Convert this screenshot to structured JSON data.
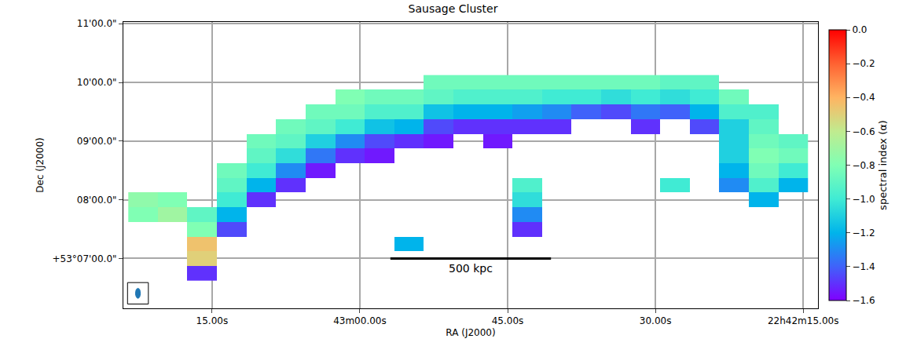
{
  "chart_data": {
    "type": "heatmap",
    "title": "Sausage Cluster",
    "x_label": "RA (J2000)",
    "y_label": "Dec (J2000)",
    "x": [
      82,
      79,
      76,
      73,
      70,
      67,
      64,
      61,
      58,
      55,
      52,
      49,
      46,
      43,
      40,
      37,
      34,
      31,
      28,
      25,
      22,
      19,
      16
    ],
    "y": [
      6.75,
      7.0,
      7.25,
      7.5,
      7.75,
      8.0,
      8.25,
      8.5,
      8.75,
      9.0,
      9.25,
      9.5,
      9.75,
      10.0
    ],
    "z": [
      [
        null,
        null,
        -1.5,
        null,
        null,
        null,
        null,
        null,
        null,
        null,
        null,
        null,
        null,
        null,
        null,
        null,
        null,
        null,
        null,
        null,
        null,
        null,
        null
      ],
      [
        null,
        null,
        -0.5,
        null,
        null,
        null,
        null,
        null,
        null,
        null,
        null,
        null,
        null,
        null,
        null,
        null,
        null,
        null,
        null,
        null,
        null,
        null,
        null
      ],
      [
        null,
        null,
        -0.45,
        null,
        null,
        null,
        null,
        null,
        null,
        -1.2,
        null,
        null,
        null,
        null,
        null,
        null,
        null,
        null,
        null,
        null,
        null,
        null,
        null
      ],
      [
        null,
        null,
        -0.8,
        -1.45,
        null,
        null,
        null,
        null,
        null,
        null,
        null,
        null,
        null,
        -1.5,
        null,
        null,
        null,
        null,
        null,
        null,
        null,
        null,
        null
      ],
      [
        -0.8,
        -0.7,
        -0.9,
        -1.2,
        null,
        null,
        null,
        null,
        null,
        null,
        null,
        null,
        null,
        -1.3,
        null,
        null,
        null,
        null,
        null,
        null,
        null,
        null,
        null
      ],
      [
        -0.75,
        -0.8,
        null,
        -1.0,
        -1.5,
        null,
        null,
        null,
        null,
        null,
        null,
        null,
        null,
        -1.05,
        null,
        null,
        null,
        null,
        null,
        null,
        null,
        -1.2,
        null
      ],
      [
        null,
        null,
        null,
        -0.9,
        -1.2,
        -1.5,
        null,
        null,
        null,
        null,
        null,
        null,
        null,
        -0.95,
        null,
        null,
        null,
        null,
        -1.0,
        null,
        -1.3,
        -0.95,
        -1.2
      ],
      [
        null,
        null,
        null,
        -0.85,
        -1.0,
        -1.3,
        -1.55,
        null,
        null,
        null,
        null,
        null,
        null,
        null,
        null,
        null,
        null,
        null,
        null,
        null,
        -1.2,
        -0.85,
        -1.0
      ],
      [
        null,
        null,
        null,
        null,
        -0.9,
        -1.05,
        -1.35,
        -1.5,
        -1.55,
        null,
        null,
        null,
        null,
        null,
        null,
        null,
        null,
        null,
        null,
        null,
        -1.1,
        -0.8,
        -0.85
      ],
      [
        null,
        null,
        null,
        null,
        -0.85,
        -0.9,
        -1.1,
        -1.3,
        -1.45,
        -1.5,
        -1.55,
        null,
        -1.55,
        null,
        null,
        null,
        null,
        null,
        null,
        null,
        -1.1,
        -0.85,
        -0.9
      ],
      [
        null,
        null,
        null,
        null,
        null,
        -0.85,
        -0.9,
        -1.0,
        -1.15,
        -1.2,
        -1.45,
        -1.5,
        -1.5,
        -1.5,
        -1.5,
        null,
        null,
        -1.5,
        null,
        -1.45,
        -1.1,
        -0.9,
        null
      ],
      [
        null,
        null,
        null,
        null,
        null,
        null,
        -0.85,
        -0.85,
        -0.95,
        -0.95,
        -1.15,
        -1.2,
        -1.2,
        -1.25,
        -1.3,
        -1.4,
        -1.45,
        -1.35,
        -1.4,
        -1.2,
        -0.95,
        -0.95,
        null
      ],
      [
        null,
        null,
        null,
        null,
        null,
        null,
        null,
        -0.8,
        -0.85,
        -0.85,
        -0.9,
        -0.95,
        -0.95,
        -0.95,
        -1.0,
        -1.0,
        -1.05,
        -1.0,
        -1.05,
        -1.0,
        -0.85,
        null,
        null
      ],
      [
        null,
        null,
        null,
        null,
        null,
        null,
        null,
        null,
        null,
        null,
        -0.85,
        -0.85,
        -0.85,
        -0.85,
        -0.85,
        -0.85,
        -0.85,
        -0.85,
        -0.9,
        -0.9,
        null,
        null,
        null
      ]
    ],
    "xlim": [
      84,
      13.5
    ],
    "ylim": [
      6.15,
      11.03
    ],
    "xticks": [
      {
        "value": 75,
        "label": "15.00s"
      },
      {
        "value": 60,
        "label": "43m00.00s"
      },
      {
        "value": 45,
        "label": "45.00s"
      },
      {
        "value": 30,
        "label": "30.00s"
      },
      {
        "value": 15,
        "label": "22h42m15.00s"
      }
    ],
    "yticks": [
      {
        "value": 7,
        "label": "+53°07'00.0\""
      },
      {
        "value": 8,
        "label": "08'00.0\""
      },
      {
        "value": 9,
        "label": "09'00.0\""
      },
      {
        "value": 10,
        "label": "10'00.0\""
      },
      {
        "value": 11,
        "label": "11'00.0\""
      }
    ],
    "grid": true,
    "colorbar": {
      "title": "spectral index (α)",
      "range": [
        -1.6,
        0
      ],
      "ticks": [
        {
          "value": 0,
          "label": "0.0"
        },
        {
          "value": -0.2,
          "label": "−0.2"
        },
        {
          "value": -0.4,
          "label": "−0.4"
        },
        {
          "value": -0.6,
          "label": "−0.6"
        },
        {
          "value": -0.8,
          "label": "−0.8"
        },
        {
          "value": -1.0,
          "label": "−1.0"
        },
        {
          "value": -1.2,
          "label": "−1.2"
        },
        {
          "value": -1.4,
          "label": "−1.4"
        },
        {
          "value": -1.6,
          "label": "−1.6"
        }
      ]
    },
    "scale_bar": {
      "label": "500 kpc",
      "x": [
        56.9,
        40.6
      ],
      "y": 7.0
    }
  }
}
